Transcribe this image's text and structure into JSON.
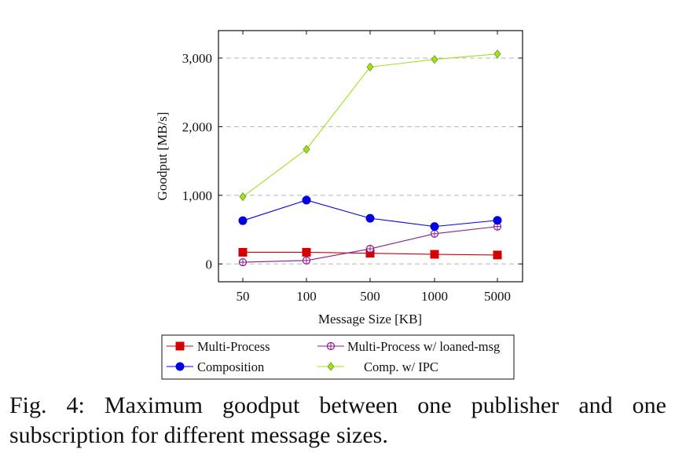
{
  "figure": {
    "caption": "Fig. 4: Maximum goodput between one publisher and one subscription for different message sizes."
  },
  "chart_data": {
    "type": "line",
    "title": "",
    "xlabel": "Message Size [KB]",
    "ylabel": "Goodput [MB/s]",
    "categories": [
      "50",
      "100",
      "500",
      "1000",
      "5000"
    ],
    "ylim": [
      -260,
      3400
    ],
    "yticks": [
      0,
      1000,
      2000,
      3000
    ],
    "ytick_labels": [
      "0",
      "1,000",
      "2,000",
      "3,000"
    ],
    "grid": "horizontal dashed",
    "legend_position": "below plot",
    "series": [
      {
        "name": "Multi-Process",
        "color": "#d40000",
        "marker": "square",
        "values": [
          170,
          170,
          155,
          140,
          130
        ]
      },
      {
        "name": "Multi-Process w/ loaned-msg",
        "color": "#8b1a8b",
        "marker": "circle-plus",
        "values": [
          25,
          50,
          220,
          440,
          545
        ]
      },
      {
        "name": "Composition",
        "color": "#0000e0",
        "marker": "circle",
        "values": [
          630,
          930,
          665,
          545,
          635
        ]
      },
      {
        "name": "Comp. w/ IPC",
        "color": "#a0e020",
        "marker": "diamond",
        "values": [
          980,
          1670,
          2870,
          2980,
          3060
        ]
      }
    ]
  }
}
